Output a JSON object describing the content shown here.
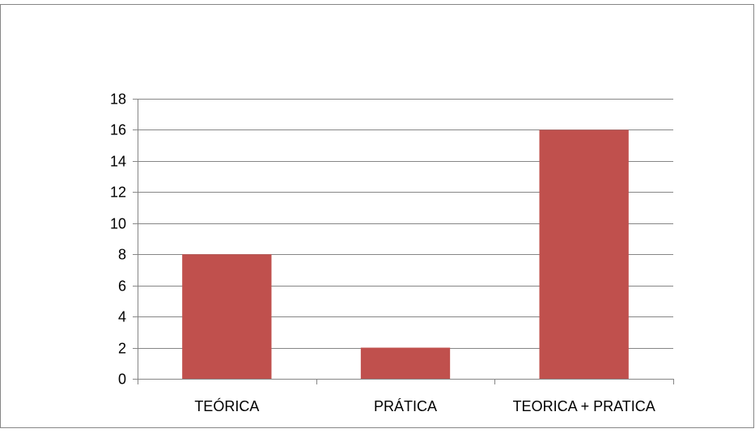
{
  "chart_data": {
    "type": "bar",
    "categories": [
      "TEÓRICA",
      "PRÁTICA",
      "TEORICA + PRATICA"
    ],
    "values": [
      8,
      2,
      16
    ],
    "ylim": [
      0,
      18
    ],
    "yticks": [
      0,
      2,
      4,
      6,
      8,
      10,
      12,
      14,
      16,
      18
    ],
    "grid": true,
    "legend": "none",
    "colors": {
      "bar": "#c0504d",
      "gridline": "#868686",
      "axis": "#868686",
      "frame": "#868686"
    }
  }
}
